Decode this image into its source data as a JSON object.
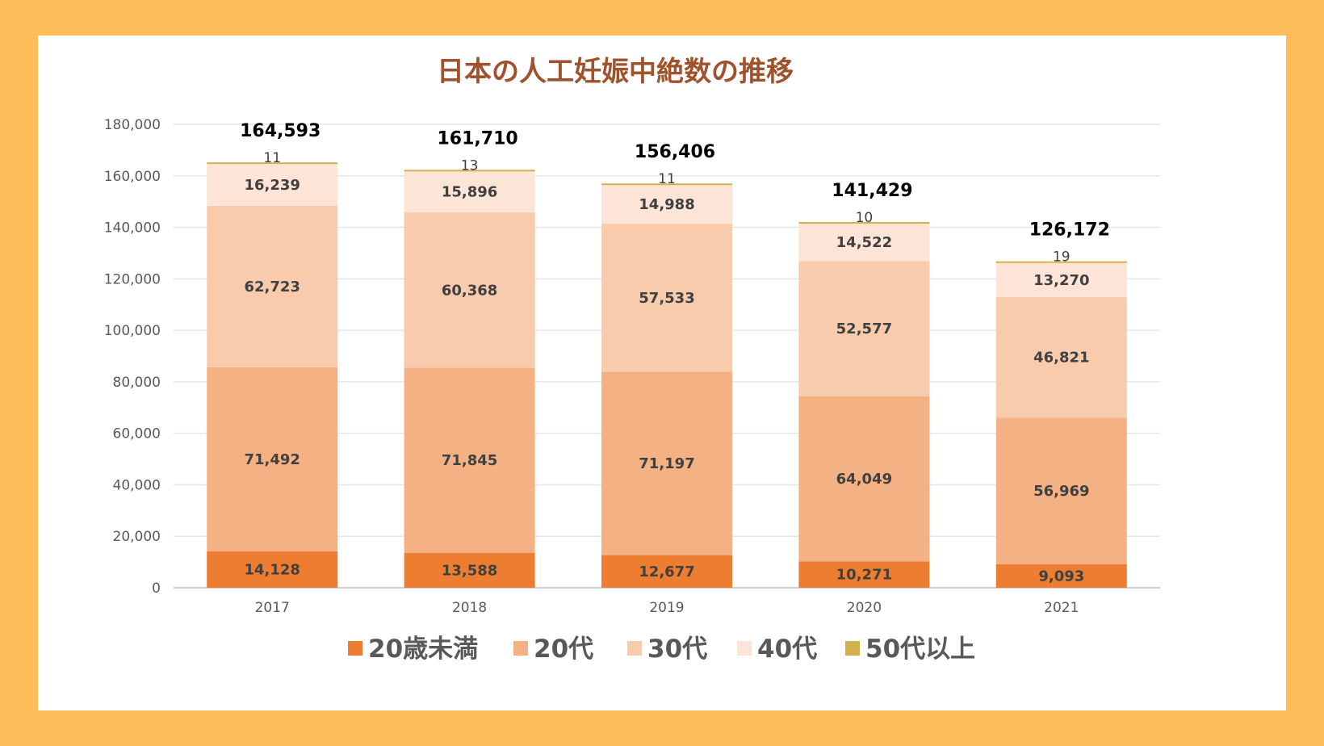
{
  "colors": {
    "background": "#FFBD59",
    "title": "#A0522D",
    "under20": "#ED7D31",
    "twenties": "#F4B183",
    "thirties": "#F8CBAD",
    "forties": "#FCE4D6",
    "fifties_plus": "#D4B04A"
  },
  "chart_data": {
    "type": "bar",
    "stacked": true,
    "title": "日本の人工妊娠中絶数の推移",
    "xlabel": "",
    "ylabel": "",
    "ylim": [
      0,
      180000
    ],
    "yticks": [
      "0",
      "20,000",
      "40,000",
      "60,000",
      "80,000",
      "100,000",
      "120,000",
      "140,000",
      "160,000",
      "180,000"
    ],
    "grid": true,
    "legend_position": "bottom",
    "categories": [
      "2017",
      "2018",
      "2019",
      "2020",
      "2021"
    ],
    "series": [
      {
        "name": "20歳未満",
        "color": "#ED7D31",
        "values": [
          14128,
          13588,
          12677,
          10271,
          9093
        ],
        "labels": [
          "14,128",
          "13,588",
          "12,677",
          "10,271",
          "9,093"
        ]
      },
      {
        "name": "20代",
        "color": "#F4B183",
        "values": [
          71492,
          71845,
          71197,
          64049,
          56969
        ],
        "labels": [
          "71,492",
          "71,845",
          "71,197",
          "64,049",
          "56,969"
        ]
      },
      {
        "name": "30代",
        "color": "#F8CBAD",
        "values": [
          62723,
          60368,
          57533,
          52577,
          46821
        ],
        "labels": [
          "62,723",
          "60,368",
          "57,533",
          "52,577",
          "46,821"
        ]
      },
      {
        "name": "40代",
        "color": "#FCE4D6",
        "values": [
          16239,
          15896,
          14988,
          14522,
          13270
        ],
        "labels": [
          "16,239",
          "15,896",
          "14,988",
          "14,522",
          "13,270"
        ]
      },
      {
        "name": "50代以上",
        "color": "#D4B04A",
        "values": [
          11,
          13,
          11,
          10,
          19
        ],
        "labels": [
          "11",
          "13",
          "11",
          "10",
          "19"
        ]
      }
    ],
    "totals": [
      164593,
      161710,
      156406,
      141429,
      126172
    ],
    "total_labels": [
      "164,593",
      "161,710",
      "156,406",
      "141,429",
      "126,172"
    ]
  }
}
